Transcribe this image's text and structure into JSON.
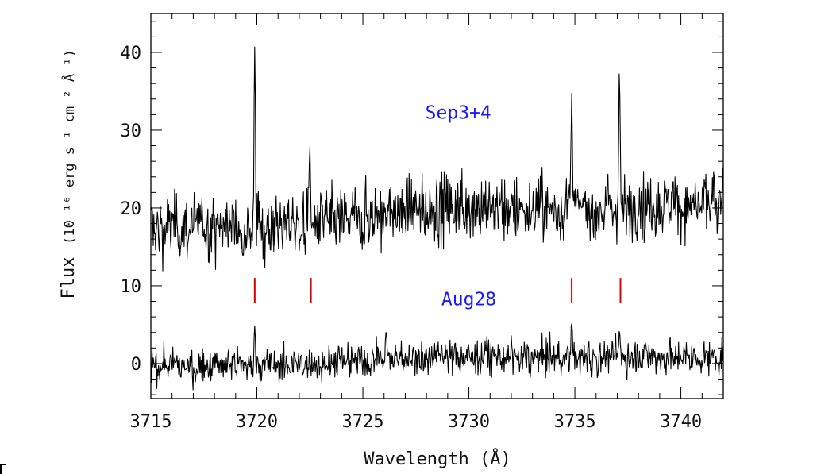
{
  "chart_data": {
    "type": "line",
    "xlabel": "Wavelength (Å)",
    "ylabel_main": "Flux",
    "ylabel_units": "(10⁻¹⁶ erg s⁻¹ cm⁻² Å⁻¹)",
    "xlim": [
      3715,
      3742
    ],
    "ylim": [
      -4.5,
      45
    ],
    "x_ticks": [
      3715,
      3720,
      3725,
      3730,
      3735,
      3740
    ],
    "x_tick_labels": [
      "3715",
      "3720",
      "3725",
      "3730",
      "3735",
      "3740"
    ],
    "y_ticks": [
      0,
      10,
      20,
      30,
      40
    ],
    "y_tick_labels": [
      "0",
      "10",
      "20",
      "30",
      "40"
    ],
    "grid": false,
    "line_color": "#000000",
    "series": [
      {
        "name": "Sep3+4",
        "label_color": "#1a1aff",
        "label_position": [
          3729.5,
          31.5
        ],
        "baseline": [
          [
            3715,
            17.5
          ],
          [
            3722,
            17.8
          ],
          [
            3726,
            19.2
          ],
          [
            3730,
            20.4
          ],
          [
            3734,
            19.6
          ],
          [
            3738,
            20.2
          ],
          [
            3742,
            20.5
          ]
        ],
        "noise": 3.6,
        "peaks": [
          {
            "x": 3719.9,
            "height": 41.2
          },
          {
            "x": 3722.5,
            "height": 28.2
          },
          {
            "x": 3734.85,
            "height": 35.0
          },
          {
            "x": 3737.1,
            "height": 38.2
          }
        ]
      },
      {
        "name": "Aug28",
        "label_color": "#1a1aff",
        "label_position": [
          3730,
          7.5
        ],
        "baseline": [
          [
            3715,
            -0.4
          ],
          [
            3722,
            -0.2
          ],
          [
            3726,
            0.6
          ],
          [
            3730,
            0.9
          ],
          [
            3734,
            0.7
          ],
          [
            3738,
            0.9
          ],
          [
            3742,
            0.6
          ]
        ],
        "noise": 1.9,
        "peaks": [
          {
            "x": 3719.9,
            "height": 5.3
          },
          {
            "x": 3726.1,
            "height": 4.5
          },
          {
            "x": 3734.85,
            "height": 5.6
          },
          {
            "x": 3737.1,
            "height": 4.4
          }
        ]
      }
    ],
    "line_markers": {
      "color": "#e00000",
      "x": [
        3719.9,
        3722.55,
        3734.85,
        3737.15
      ],
      "y_range": [
        7.8,
        11.0
      ]
    }
  }
}
